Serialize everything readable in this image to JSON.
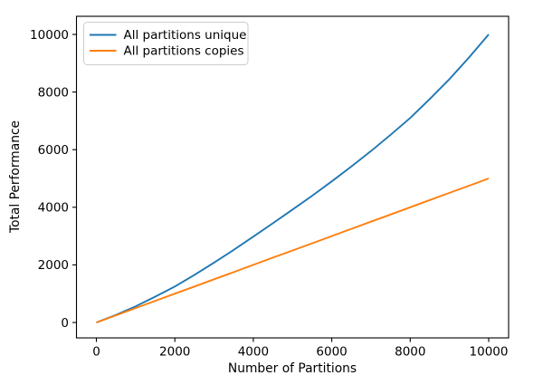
{
  "figure": {
    "background_color": "#ffffff"
  },
  "chart_data": {
    "type": "line",
    "title": "",
    "xlabel": "Number of Partitions",
    "ylabel": "Total Performance",
    "xlim": [
      -500,
      10500
    ],
    "ylim": [
      -500,
      10500
    ],
    "x_ticks": [
      0,
      2000,
      4000,
      6000,
      8000,
      10000
    ],
    "y_ticks": [
      0,
      2000,
      4000,
      6000,
      8000,
      10000
    ],
    "grid": false,
    "legend_position": "upper left",
    "x": [
      0,
      500,
      1000,
      1500,
      2000,
      2500,
      3000,
      3500,
      4000,
      4500,
      5000,
      5500,
      6000,
      6500,
      7000,
      7500,
      8000,
      8500,
      9000,
      9500,
      10000
    ],
    "series": [
      {
        "name": "All partitions unique",
        "color": "#1f77b4",
        "values": [
          0,
          265,
          560,
          895,
          1250,
          1655,
          2080,
          2520,
          2980,
          3445,
          3920,
          4400,
          4900,
          5415,
          5950,
          6515,
          7100,
          7760,
          8450,
          9200,
          10000
        ]
      },
      {
        "name": "All partitions copies",
        "color": "#ff7f0e",
        "values": [
          0,
          250,
          500,
          750,
          1000,
          1250,
          1500,
          1750,
          2000,
          2250,
          2500,
          2750,
          3000,
          3250,
          3500,
          3750,
          4000,
          4250,
          4500,
          4750,
          5000
        ]
      }
    ]
  }
}
